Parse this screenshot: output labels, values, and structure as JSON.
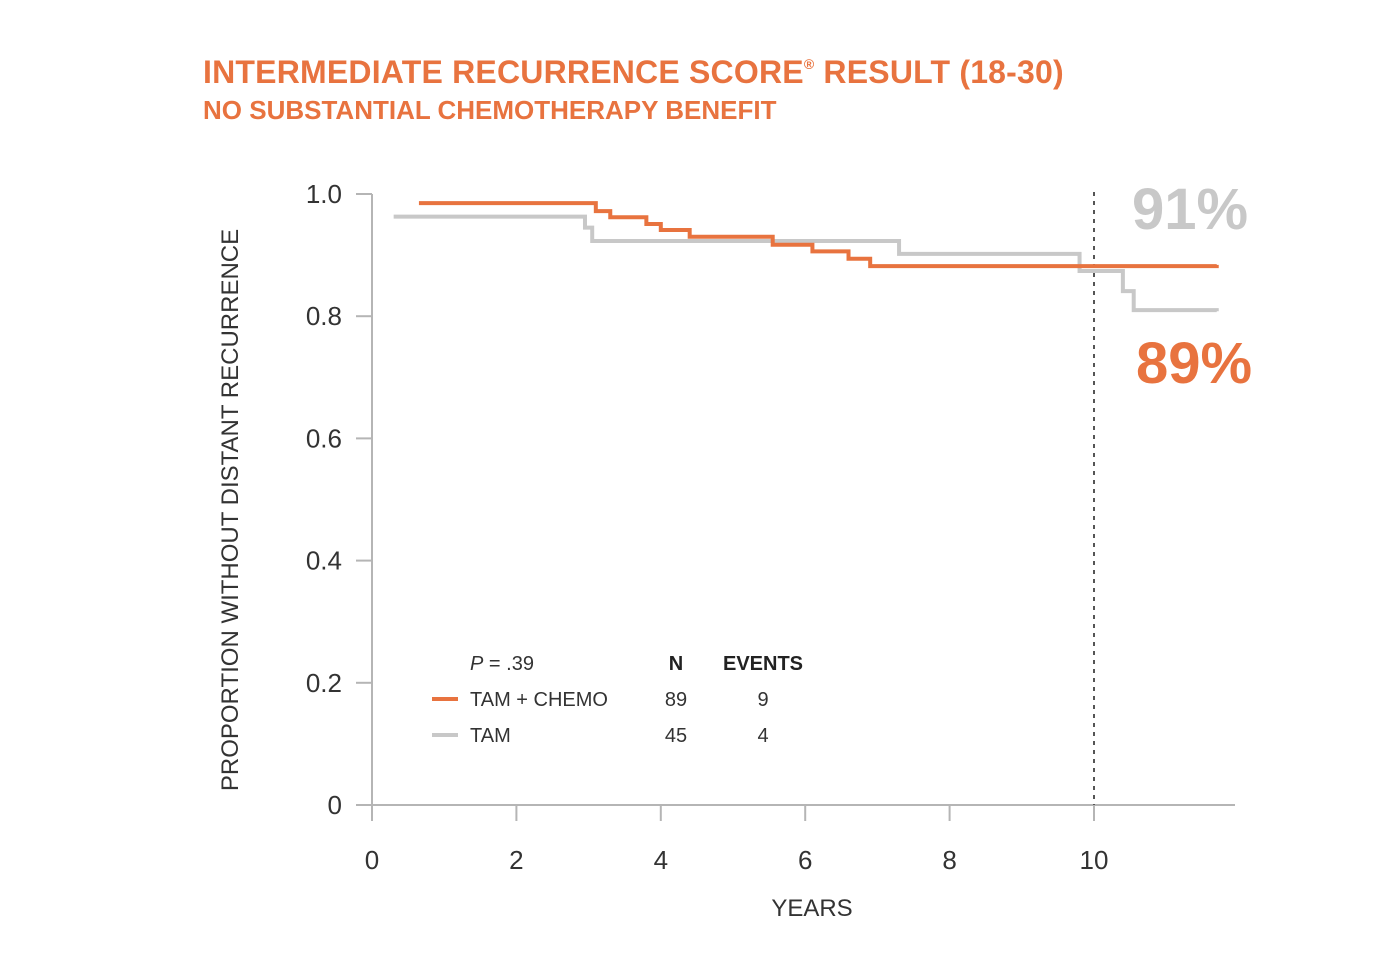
{
  "header": {
    "title_main": "INTERMEDIATE RECURRENCE SCORE",
    "title_reg": "®",
    "title_tail": " RESULT (18-30)",
    "subtitle": "NO SUBSTANTIAL CHEMOTHERAPY BENEFIT"
  },
  "chart_data": {
    "type": "line",
    "step": true,
    "title": "INTERMEDIATE RECURRENCE SCORE® RESULT (18-30)",
    "subtitle": "NO SUBSTANTIAL CHEMOTHERAPY BENEFIT",
    "xlabel": "YEARS",
    "ylabel": "PROPORTION WITHOUT DISTANT RECURRENCE",
    "xlim": [
      0,
      12
    ],
    "ylim": [
      0,
      1.0
    ],
    "x_ticks": [
      0,
      2,
      4,
      6,
      8,
      10
    ],
    "x_tick_labels": [
      "0",
      "2",
      "4",
      "6",
      "8",
      "10"
    ],
    "y_ticks": [
      0,
      0.2,
      0.4,
      0.6,
      0.8,
      1.0
    ],
    "y_tick_labels": [
      "0",
      "0.2",
      "0.4",
      "0.6",
      "0.8",
      "1.0"
    ],
    "reference_line_x": 10,
    "series": [
      {
        "name": "TAM + CHEMO",
        "color": "#E8733F",
        "n": "89",
        "events": "9",
        "x": [
          0.65,
          3.1,
          3.3,
          3.8,
          4.0,
          4.4,
          5.55,
          6.1,
          6.6,
          6.9,
          11.7
        ],
        "y": [
          0.985,
          0.972,
          0.962,
          0.951,
          0.941,
          0.93,
          0.917,
          0.906,
          0.894,
          0.882,
          0.884
        ]
      },
      {
        "name": "TAM",
        "color": "#C8C8C8",
        "n": "45",
        "events": "4",
        "x": [
          0.3,
          2.95,
          3.05,
          7.3,
          9.8,
          10.4,
          10.55,
          11.7
        ],
        "y": [
          0.963,
          0.945,
          0.923,
          0.902,
          0.874,
          0.841,
          0.81,
          0.808
        ]
      }
    ],
    "annotations": [
      {
        "text": "91%",
        "color": "#C8C8C8"
      },
      {
        "text": "89%",
        "color": "#E8733F"
      }
    ],
    "legend": {
      "p_label": "P",
      "p_value": " = .39",
      "col_n": "N",
      "col_events": "EVENTS",
      "placement": "bottom-left"
    }
  }
}
